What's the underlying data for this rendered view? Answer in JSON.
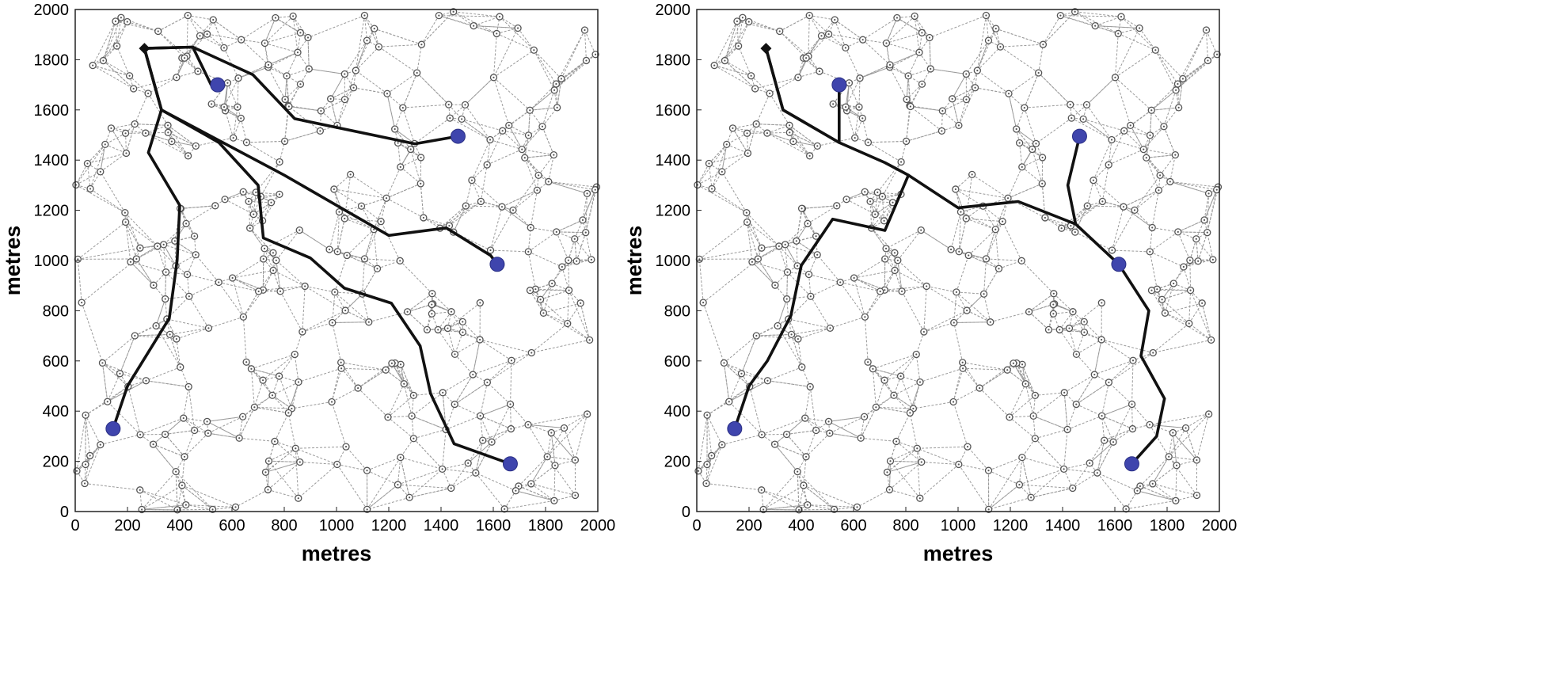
{
  "chart_data": [
    {
      "type": "scatter",
      "title": "",
      "xlabel": "metres",
      "ylabel": "metres",
      "xlim": [
        0,
        2000
      ],
      "ylim": [
        0,
        2000
      ],
      "x_ticks": [
        "0",
        "200",
        "400",
        "600",
        "800",
        "1000",
        "1200",
        "1400",
        "1600",
        "1800",
        "2000"
      ],
      "y_ticks": [
        "0",
        "200",
        "400",
        "600",
        "800",
        "1000",
        "1200",
        "1400",
        "1600",
        "1800",
        "2000"
      ],
      "sink": {
        "x": 265,
        "y": 1845
      },
      "sources": [
        {
          "x": 545,
          "y": 1700
        },
        {
          "x": 1465,
          "y": 1495
        },
        {
          "x": 1615,
          "y": 985
        },
        {
          "x": 145,
          "y": 330
        },
        {
          "x": 1665,
          "y": 190
        }
      ],
      "routes": [
        [
          [
            265,
            1845
          ],
          [
            450,
            1850
          ],
          [
            520,
            1700
          ],
          [
            545,
            1700
          ]
        ],
        [
          [
            265,
            1845
          ],
          [
            450,
            1850
          ],
          [
            680,
            1740
          ],
          [
            840,
            1565
          ],
          [
            1300,
            1465
          ],
          [
            1465,
            1495
          ]
        ],
        [
          [
            265,
            1845
          ],
          [
            330,
            1600
          ],
          [
            550,
            1470
          ],
          [
            700,
            1300
          ],
          [
            720,
            1090
          ],
          [
            900,
            1010
          ],
          [
            1030,
            890
          ],
          [
            1210,
            830
          ],
          [
            1320,
            660
          ],
          [
            1360,
            470
          ],
          [
            1450,
            270
          ],
          [
            1665,
            190
          ]
        ],
        [
          [
            265,
            1845
          ],
          [
            330,
            1600
          ],
          [
            800,
            1340
          ],
          [
            1200,
            1100
          ],
          [
            1420,
            1130
          ],
          [
            1590,
            1020
          ],
          [
            1615,
            985
          ]
        ],
        [
          [
            265,
            1845
          ],
          [
            330,
            1600
          ],
          [
            280,
            1430
          ],
          [
            400,
            1220
          ],
          [
            390,
            1000
          ],
          [
            360,
            770
          ],
          [
            200,
            500
          ],
          [
            145,
            330
          ]
        ]
      ]
    },
    {
      "type": "scatter",
      "title": "",
      "xlabel": "metres",
      "ylabel": "metres",
      "xlim": [
        0,
        2000
      ],
      "ylim": [
        0,
        2000
      ],
      "x_ticks": [
        "0",
        "200",
        "400",
        "600",
        "800",
        "1000",
        "1200",
        "1400",
        "1600",
        "1800",
        "2000"
      ],
      "y_ticks": [
        "0",
        "200",
        "400",
        "600",
        "800",
        "1000",
        "1200",
        "1400",
        "1600",
        "1800",
        "2000"
      ],
      "sink": {
        "x": 265,
        "y": 1845
      },
      "sources": [
        {
          "x": 545,
          "y": 1700
        },
        {
          "x": 1465,
          "y": 1495
        },
        {
          "x": 1615,
          "y": 985
        },
        {
          "x": 145,
          "y": 330
        },
        {
          "x": 1665,
          "y": 190
        }
      ],
      "routes": [
        [
          [
            265,
            1845
          ],
          [
            330,
            1600
          ],
          [
            545,
            1470
          ],
          [
            545,
            1700
          ]
        ],
        [
          [
            265,
            1845
          ],
          [
            330,
            1600
          ],
          [
            545,
            1470
          ],
          [
            720,
            1390
          ],
          [
            810,
            1340
          ],
          [
            1000,
            1210
          ],
          [
            1230,
            1235
          ],
          [
            1450,
            1145
          ],
          [
            1420,
            1300
          ],
          [
            1465,
            1495
          ]
        ],
        [
          [
            1450,
            1145
          ],
          [
            1615,
            985
          ]
        ],
        [
          [
            1615,
            985
          ],
          [
            1730,
            800
          ],
          [
            1700,
            620
          ],
          [
            1790,
            450
          ],
          [
            1760,
            300
          ],
          [
            1665,
            190
          ]
        ],
        [
          [
            810,
            1340
          ],
          [
            720,
            1120
          ],
          [
            520,
            1165
          ],
          [
            400,
            980
          ],
          [
            360,
            780
          ],
          [
            270,
            600
          ],
          [
            200,
            500
          ],
          [
            145,
            330
          ]
        ]
      ]
    }
  ]
}
